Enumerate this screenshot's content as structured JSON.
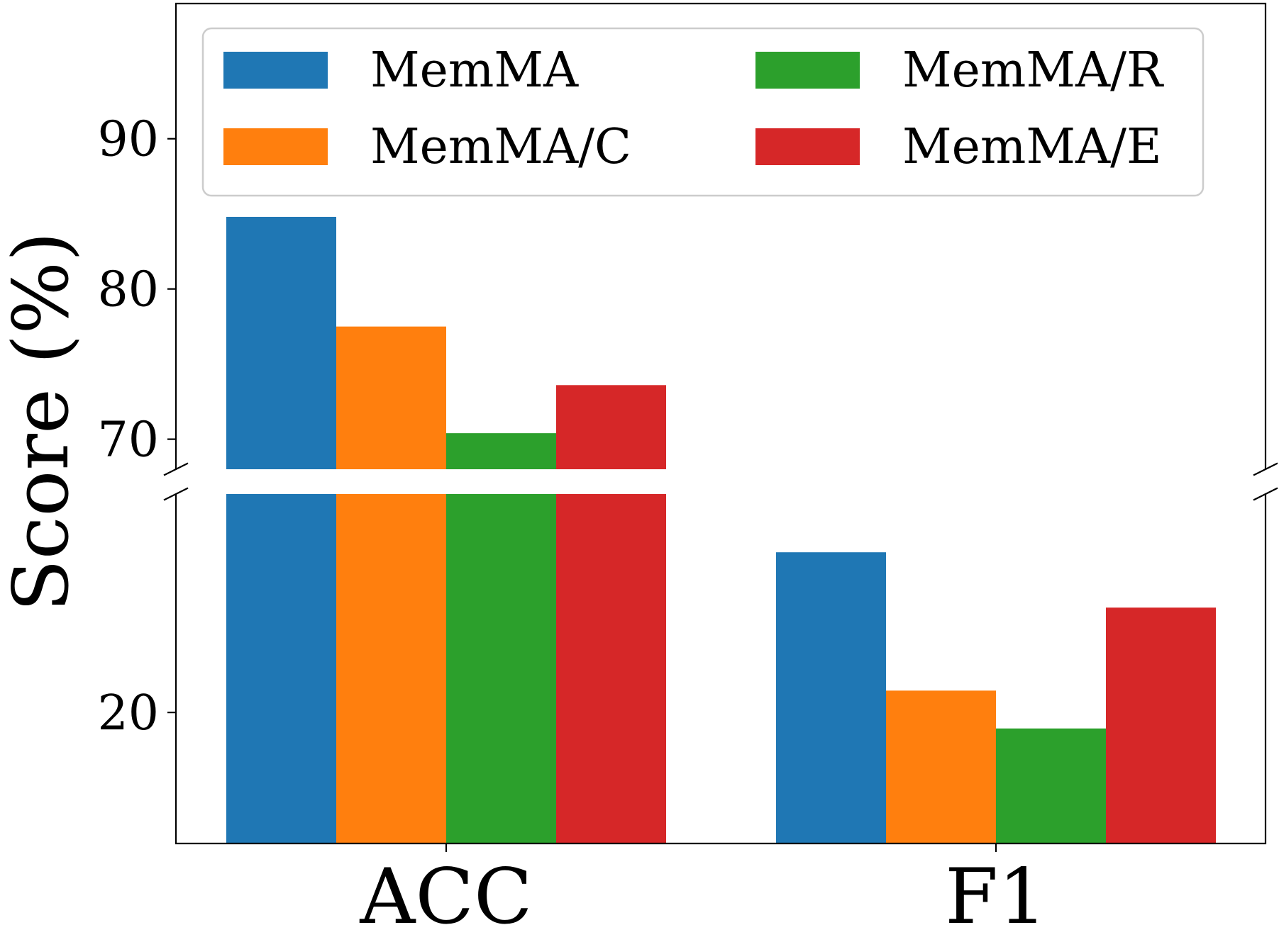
{
  "chart_data": {
    "type": "bar",
    "xlabel": "",
    "ylabel": "Score (%)",
    "categories": [
      "ACC",
      "F1"
    ],
    "series": [
      {
        "name": "MemMA",
        "color": "#1f77b4",
        "values": [
          84.8,
          31.0
        ]
      },
      {
        "name": "MemMA/C",
        "color": "#ff7f0e",
        "values": [
          77.5,
          21.5
        ]
      },
      {
        "name": "MemMA/R",
        "color": "#2ca02c",
        "values": [
          70.4,
          18.9
        ]
      },
      {
        "name": "MemMA/E",
        "color": "#d62728",
        "values": [
          73.6,
          27.2
        ]
      }
    ],
    "axis_break": true,
    "upper_ylim": [
      68,
      99
    ],
    "upper_yticks": [
      "70",
      "80",
      "90"
    ],
    "lower_ylim": [
      11,
      35
    ],
    "lower_yticks": [
      "20"
    ],
    "legend": {
      "position": "upper",
      "columns": 2
    },
    "grid": false
  }
}
